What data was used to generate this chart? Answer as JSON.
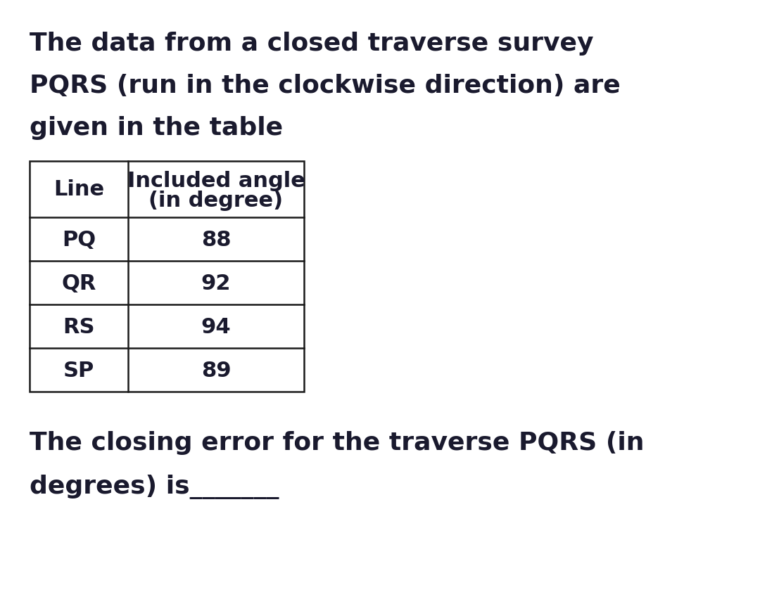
{
  "title_line1": "The data from a closed traverse survey",
  "title_line2": "PQRS (run in the clockwise direction) are",
  "title_line3": "given in the table",
  "col1_header": "Line",
  "col2_header_line1": "Included angle",
  "col2_header_line2": "(in degree)",
  "rows": [
    [
      "PQ",
      "88"
    ],
    [
      "QR",
      "92"
    ],
    [
      "RS",
      "94"
    ],
    [
      "SP",
      "89"
    ]
  ],
  "footer_line1": "The closing error for the traverse PQRS (in",
  "footer_line2": "degrees) is_______",
  "bg_color": "#ffffff",
  "text_color": "#1a1a2e",
  "table_border_color": "#1a1a1a",
  "title_fontsize": 26,
  "table_fontsize": 22,
  "footer_fontsize": 26,
  "figwidth": 10.8,
  "figheight": 8.7,
  "dpi": 100
}
